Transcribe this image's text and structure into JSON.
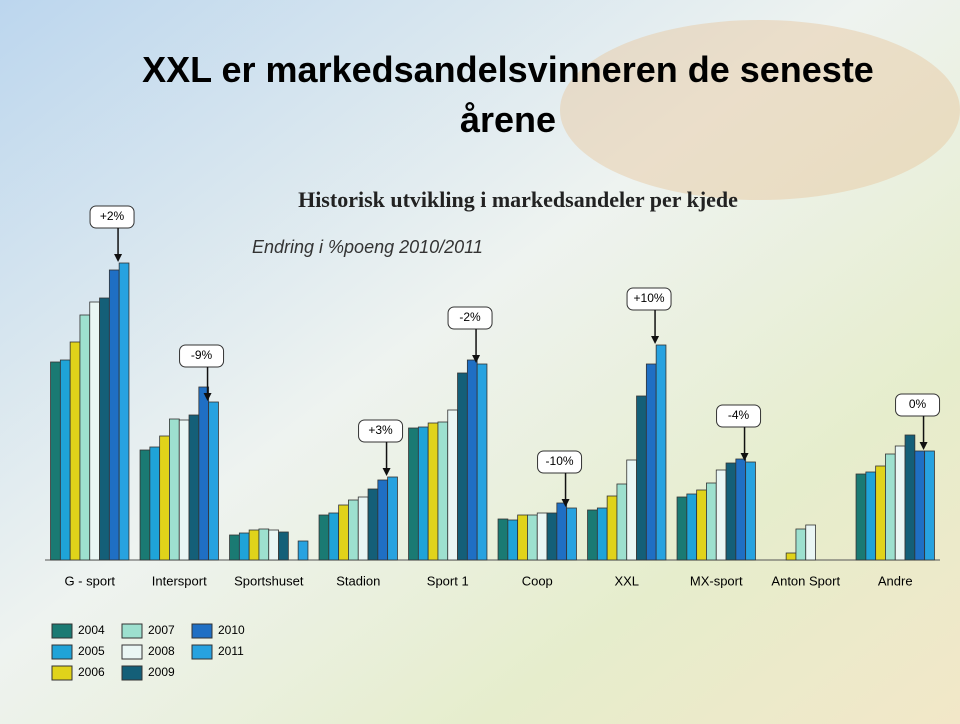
{
  "chart_data": {
    "type": "bar",
    "title": "XXL er markedsandelsvinneren de seneste årene",
    "subtitle": "Historisk utvikling i markedsandeler per kjede",
    "note": "Endring i %poeng 2010/2011",
    "categories": [
      "G - sport",
      "Intersport",
      "Sportshuset",
      "Stadion",
      "Sport 1",
      "Coop",
      "XXL",
      "MX-sport",
      "Anton Sport",
      "Andre"
    ],
    "changes": [
      "+2%",
      "-9%",
      null,
      "+3%",
      "-2%",
      "-10%",
      "+10%",
      "-4%",
      null,
      "0%"
    ],
    "ylim": [
      0,
      300
    ],
    "series": [
      {
        "name": "2004",
        "color": "#1a7a73",
        "values": [
          198,
          110,
          25,
          45,
          132,
          41,
          50,
          63,
          null,
          86
        ]
      },
      {
        "name": "2005",
        "color": "#1fa3d8",
        "values": [
          200,
          113,
          27,
          47,
          133,
          40,
          52,
          66,
          null,
          88
        ]
      },
      {
        "name": "2006",
        "color": "#e0d31a",
        "values": [
          218,
          124,
          30,
          55,
          137,
          45,
          64,
          70,
          7,
          94
        ]
      },
      {
        "name": "2007",
        "color": "#9de0cf",
        "values": [
          245,
          141,
          31,
          60,
          138,
          45,
          76,
          77,
          31,
          106
        ]
      },
      {
        "name": "2008",
        "color": "#eaf6f4",
        "values": [
          258,
          140,
          30,
          63,
          150,
          47,
          100,
          90,
          35,
          114
        ]
      },
      {
        "name": "2009",
        "color": "#145f78",
        "values": [
          262,
          145,
          28,
          71,
          187,
          47,
          164,
          97,
          null,
          125
        ]
      },
      {
        "name": "2010",
        "color": "#1f6fc4",
        "values": [
          290,
          173,
          null,
          80,
          200,
          57,
          196,
          101,
          null,
          109
        ]
      },
      {
        "name": "2011",
        "color": "#27a2e0",
        "values": [
          297,
          158,
          19,
          83,
          196,
          52,
          215,
          98,
          null,
          109
        ]
      }
    ]
  }
}
